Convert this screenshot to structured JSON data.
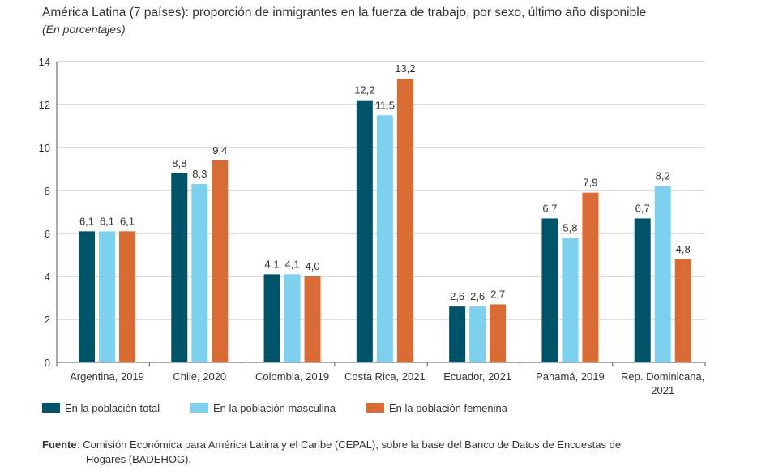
{
  "chart_data": {
    "type": "bar",
    "title": "América Latina (7 países): proporción de inmigrantes en la fuerza de trabajo, por sexo, último año disponible",
    "subtitle": "(En porcentajes)",
    "categories": [
      "Argentina, 2019",
      "Chile, 2020",
      "Colombia, 2019",
      "Costa Rica, 2021",
      "Ecuador, 2021",
      "Panamá, 2019",
      "Rep. Dominicana, 2021"
    ],
    "series": [
      {
        "name": "En la población total",
        "color": "#00546a",
        "values": [
          6.1,
          8.8,
          4.1,
          12.2,
          2.6,
          6.7,
          6.7
        ]
      },
      {
        "name": "En la población masculina",
        "color": "#7dd0ee",
        "values": [
          6.1,
          8.3,
          4.1,
          11.5,
          2.6,
          5.8,
          8.2
        ]
      },
      {
        "name": "En la población femenina",
        "color": "#d86c34",
        "values": [
          6.1,
          9.4,
          4.0,
          13.2,
          2.7,
          7.9,
          4.8
        ]
      }
    ],
    "ylim": [
      0,
      14
    ],
    "yticks": [
      0,
      2,
      4,
      6,
      8,
      10,
      12,
      14
    ],
    "grid": true,
    "legend": "bottom",
    "source_label": "Fuente",
    "source_text": ": Comisión Económica para América Latina y el Caribe (CEPAL), sobre la base del Banco de Datos de Encuestas de Hogares (BADEHOG)."
  }
}
